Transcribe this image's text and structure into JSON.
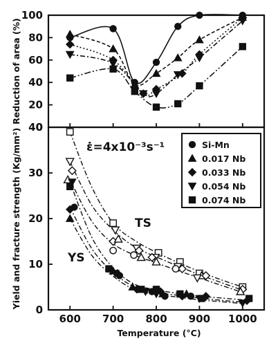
{
  "chart_data": [
    {
      "type": "line",
      "xlabel": "",
      "ylabel": "Reduction of area (%)",
      "xlim": [
        550,
        1050
      ],
      "ylim": [
        0,
        100
      ],
      "yticks": [
        "0",
        "20",
        "40",
        "60",
        "80",
        "100"
      ],
      "grid": false,
      "series": [
        {
          "name": "Si-Mn",
          "marker": "circle",
          "x": [
            600,
            700,
            750,
            800,
            850,
            900,
            1000
          ],
          "y": [
            80,
            88,
            40,
            58,
            90,
            100,
            100
          ]
        },
        {
          "name": "0.017 Nb",
          "marker": "triangle-up",
          "x": [
            600,
            700,
            750,
            800,
            850,
            900,
            1000
          ],
          "y": [
            83,
            70,
            38,
            48,
            62,
            78,
            98
          ]
        },
        {
          "name": "0.033 Nb",
          "marker": "diamond",
          "x": [
            600,
            700,
            770,
            800,
            860,
            900,
            1000
          ],
          "y": [
            74,
            60,
            30,
            34,
            48,
            65,
            98
          ]
        },
        {
          "name": "0.054 Nb",
          "marker": "triangle-down",
          "x": [
            600,
            700,
            770,
            800,
            850,
            900,
            1000
          ],
          "y": [
            65,
            57,
            30,
            30,
            47,
            62,
            95
          ]
        },
        {
          "name": "0.074 Nb",
          "marker": "square",
          "x": [
            600,
            700,
            750,
            800,
            850,
            900,
            1000
          ],
          "y": [
            44,
            52,
            32,
            18,
            21,
            37,
            72
          ]
        }
      ]
    },
    {
      "type": "scatter",
      "xlabel": "Temperature (°C)",
      "ylabel": "Yield and fracture strength (Kg/mm²)",
      "xlim": [
        550,
        1050
      ],
      "ylim": [
        0,
        40
      ],
      "xticks": [
        "600",
        "700",
        "800",
        "900",
        "1000"
      ],
      "yticks": [
        "0",
        "10",
        "20",
        "30",
        "40"
      ],
      "grid": false,
      "legend": "top-right",
      "annotation": "ε̇=4x10⁻³s⁻¹",
      "curve_labels": {
        "ts": "TS",
        "ys": "YS"
      },
      "ts_points": [
        {
          "marker": "square",
          "x": 600,
          "y": 39
        },
        {
          "marker": "triangle-down",
          "x": 600,
          "y": 32.5
        },
        {
          "marker": "diamond",
          "x": 605,
          "y": 30.5
        },
        {
          "marker": "triangle-up",
          "x": 595,
          "y": 28.5
        },
        {
          "marker": "square",
          "x": 700,
          "y": 19
        },
        {
          "marker": "triangle-down",
          "x": 705,
          "y": 17.5
        },
        {
          "marker": "diamond",
          "x": 700,
          "y": 15
        },
        {
          "marker": "triangle-up",
          "x": 712,
          "y": 15.5
        },
        {
          "marker": "circle",
          "x": 700,
          "y": 13
        },
        {
          "marker": "triangle-down",
          "x": 755,
          "y": 13.5
        },
        {
          "marker": "diamond",
          "x": 760,
          "y": 13
        },
        {
          "marker": "circle",
          "x": 748,
          "y": 12
        },
        {
          "marker": "triangle-up",
          "x": 765,
          "y": 11.5
        },
        {
          "marker": "square",
          "x": 805,
          "y": 12.5
        },
        {
          "marker": "triangle-down",
          "x": 798,
          "y": 11.5
        },
        {
          "marker": "diamond",
          "x": 790,
          "y": 11.5
        },
        {
          "marker": "triangle-up",
          "x": 800,
          "y": 10.5
        },
        {
          "marker": "square",
          "x": 855,
          "y": 10.5
        },
        {
          "marker": "triangle-down",
          "x": 850,
          "y": 9.5
        },
        {
          "marker": "diamond",
          "x": 860,
          "y": 9
        },
        {
          "marker": "circle",
          "x": 845,
          "y": 9
        },
        {
          "marker": "square",
          "x": 900,
          "y": 8
        },
        {
          "marker": "triangle-up",
          "x": 905,
          "y": 7.5
        },
        {
          "marker": "diamond",
          "x": 915,
          "y": 7.5
        },
        {
          "marker": "triangle-down",
          "x": 895,
          "y": 7
        },
        {
          "marker": "square",
          "x": 1000,
          "y": 5
        },
        {
          "marker": "diamond",
          "x": 1000,
          "y": 4.5
        },
        {
          "marker": "triangle-up",
          "x": 995,
          "y": 4
        }
      ],
      "ys_points": [
        {
          "marker": "triangle-down",
          "x": 605,
          "y": 28
        },
        {
          "marker": "square",
          "x": 600,
          "y": 27
        },
        {
          "marker": "circle",
          "x": 610,
          "y": 22.5
        },
        {
          "marker": "diamond",
          "x": 600,
          "y": 22
        },
        {
          "marker": "triangle-up",
          "x": 600,
          "y": 20
        },
        {
          "marker": "square",
          "x": 690,
          "y": 9
        },
        {
          "marker": "triangle-up",
          "x": 700,
          "y": 8.5
        },
        {
          "marker": "triangle-down",
          "x": 705,
          "y": 8
        },
        {
          "marker": "diamond",
          "x": 710,
          "y": 8
        },
        {
          "marker": "circle",
          "x": 715,
          "y": 7.5
        },
        {
          "marker": "triangle-up",
          "x": 745,
          "y": 5
        },
        {
          "marker": "diamond",
          "x": 755,
          "y": 4.5
        },
        {
          "marker": "square",
          "x": 765,
          "y": 4.5
        },
        {
          "marker": "triangle-down",
          "x": 775,
          "y": 4
        },
        {
          "marker": "circle",
          "x": 790,
          "y": 4
        },
        {
          "marker": "square",
          "x": 800,
          "y": 4.5
        },
        {
          "marker": "diamond",
          "x": 810,
          "y": 4
        },
        {
          "marker": "triangle-up",
          "x": 815,
          "y": 3.5
        },
        {
          "marker": "triangle-down",
          "x": 800,
          "y": 3.5
        },
        {
          "marker": "circle",
          "x": 820,
          "y": 3
        },
        {
          "marker": "square",
          "x": 855,
          "y": 3.5
        },
        {
          "marker": "diamond",
          "x": 860,
          "y": 3
        },
        {
          "marker": "triangle-up",
          "x": 870,
          "y": 3.5
        },
        {
          "marker": "circle",
          "x": 880,
          "y": 3
        },
        {
          "marker": "triangle-down",
          "x": 900,
          "y": 2.5
        },
        {
          "marker": "diamond",
          "x": 915,
          "y": 3
        },
        {
          "marker": "square",
          "x": 905,
          "y": 2.5
        },
        {
          "marker": "triangle-down",
          "x": 1000,
          "y": 1.5
        },
        {
          "marker": "diamond",
          "x": 1010,
          "y": 2
        },
        {
          "marker": "square",
          "x": 1015,
          "y": 2.5
        }
      ],
      "ts_curves": [
        {
          "x": [
            600,
            650,
            700,
            750,
            800,
            850,
            900,
            950,
            1000
          ],
          "y": [
            39,
            27,
            19,
            15.2,
            12.6,
            10.4,
            8.4,
            6.6,
            5.0
          ]
        },
        {
          "x": [
            600,
            650,
            700,
            750,
            800,
            850,
            900,
            950,
            1000
          ],
          "y": [
            32.5,
            23,
            17.5,
            13.8,
            11.6,
            9.6,
            7.7,
            6.0,
            4.3
          ]
        },
        {
          "x": [
            600,
            650,
            700,
            750,
            800,
            850,
            900,
            950,
            1000
          ],
          "y": [
            28.5,
            19.5,
            14.5,
            12,
            10.3,
            8.6,
            7.0,
            5.4,
            3.8
          ]
        }
      ],
      "ys_curves": [
        {
          "x": [
            600,
            650,
            700,
            750,
            800,
            850,
            900,
            950,
            1000
          ],
          "y": [
            28,
            16,
            9.2,
            5.6,
            4.4,
            3.6,
            3.0,
            2.6,
            2.2
          ]
        },
        {
          "x": [
            600,
            650,
            700,
            750,
            800,
            850,
            900,
            950,
            1000
          ],
          "y": [
            22.5,
            13.5,
            8.2,
            5.0,
            3.8,
            3.2,
            2.6,
            2.1,
            1.7
          ]
        },
        {
          "x": [
            600,
            650,
            700,
            750,
            800,
            850,
            900,
            950,
            1000
          ],
          "y": [
            20,
            12,
            7.4,
            4.4,
            3.4,
            2.8,
            2.2,
            1.8,
            1.4
          ]
        }
      ],
      "legend_entries": [
        {
          "marker": "circle",
          "label": "Si-Mn"
        },
        {
          "marker": "triangle-up",
          "label": "0.017 Nb"
        },
        {
          "marker": "diamond",
          "label": "0.033 Nb"
        },
        {
          "marker": "triangle-down",
          "label": "0.054 Nb"
        },
        {
          "marker": "square",
          "label": "0.074 Nb"
        }
      ]
    }
  ]
}
